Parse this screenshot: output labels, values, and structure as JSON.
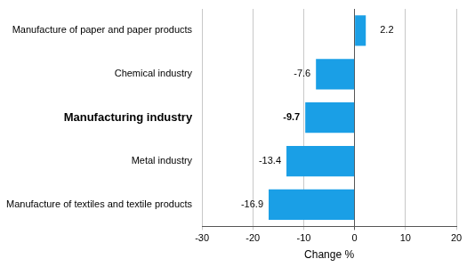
{
  "chart_data": {
    "type": "bar",
    "orientation": "horizontal",
    "categories": [
      "Manufacture of paper and paper products",
      "Chemical industry",
      "Manufacturing industry",
      "Metal industry",
      "Manufacture of textiles and textile products"
    ],
    "values": [
      2.2,
      -7.6,
      -9.7,
      -13.4,
      -16.9
    ],
    "color": "#1a9fe6",
    "xlim": [
      -30,
      20
    ],
    "xticks": [
      -30,
      -20,
      -10,
      0,
      10,
      20
    ],
    "xlabel": "Change %",
    "grid": true,
    "data_labels": true
  }
}
